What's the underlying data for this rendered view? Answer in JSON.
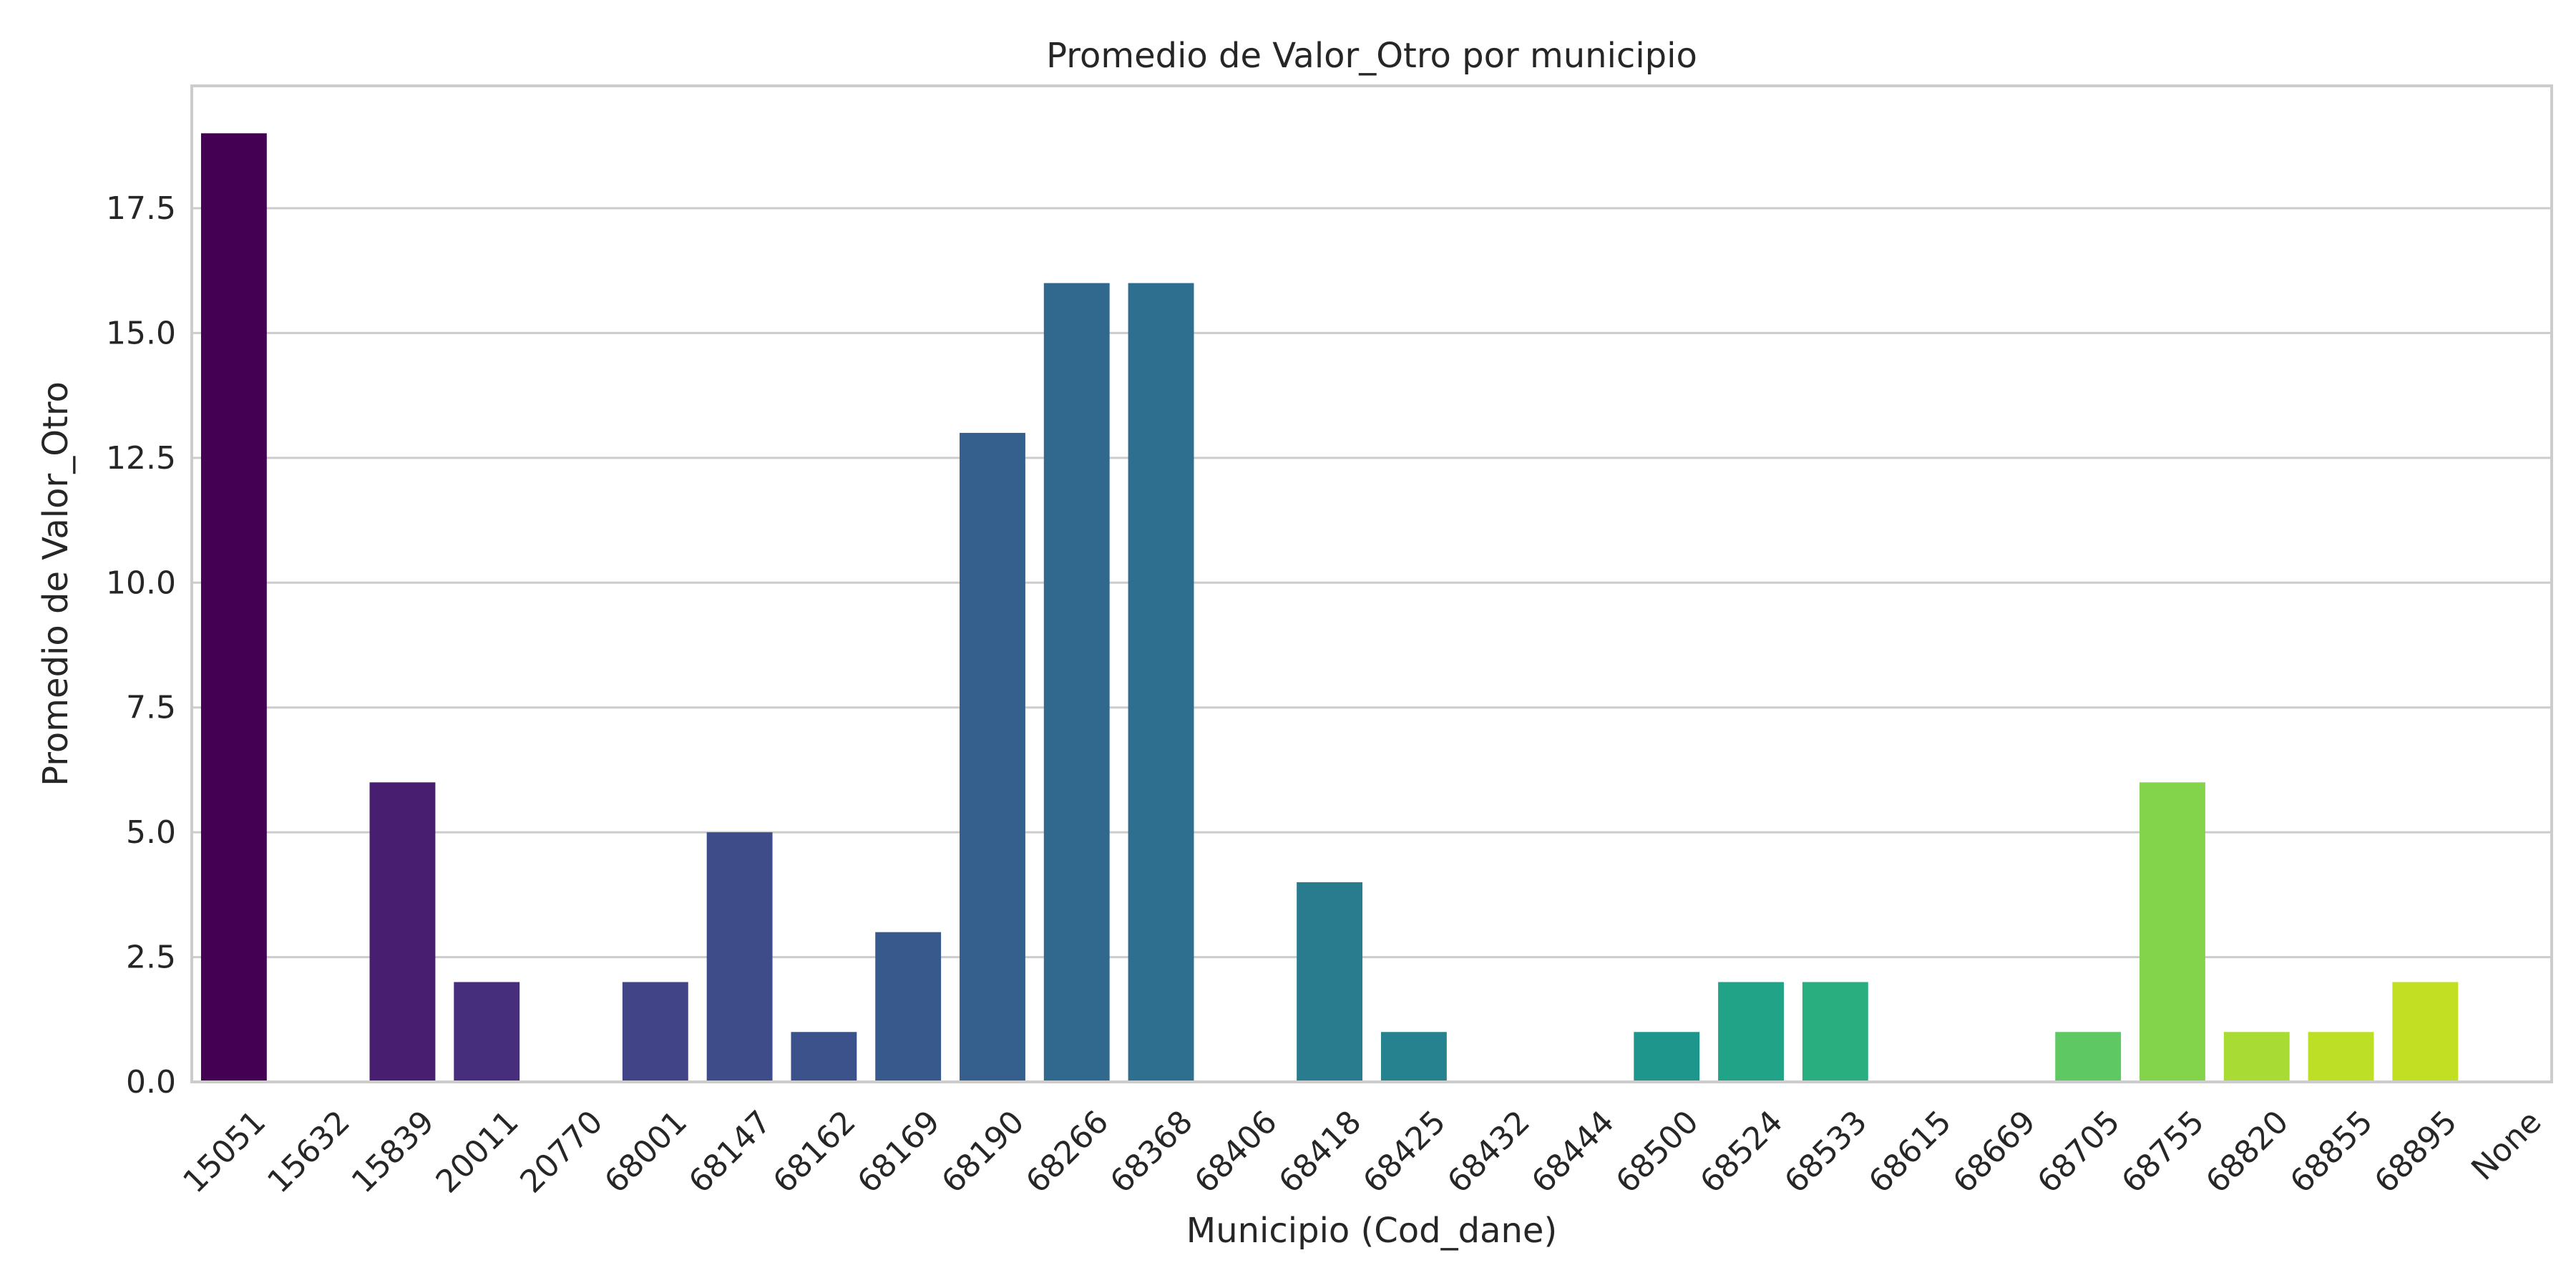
{
  "chart_data": {
    "type": "bar",
    "title": "Promedio de Valor_Otro por municipio",
    "xlabel": "Municipio (Cod_dane)",
    "ylabel": "Promedio de Valor_Otro",
    "categories": [
      "15051",
      "15632",
      "15839",
      "20011",
      "20770",
      "68001",
      "68147",
      "68162",
      "68169",
      "68190",
      "68266",
      "68368",
      "68406",
      "68418",
      "68425",
      "68432",
      "68444",
      "68500",
      "68524",
      "68533",
      "68615",
      "68669",
      "68705",
      "68755",
      "68820",
      "68855",
      "68895",
      "None"
    ],
    "values": [
      19,
      0,
      6,
      2,
      0,
      2,
      5,
      1,
      3,
      13,
      16,
      16,
      0,
      4,
      1,
      0,
      0,
      1,
      2,
      2,
      0,
      0,
      1,
      6,
      1,
      1,
      2,
      0
    ],
    "colors": [
      "#440154",
      "#471164",
      "#481f70",
      "#472e7c",
      "#453882",
      "#414487",
      "#3e4c8a",
      "#3b528b",
      "#38598c",
      "#355f8d",
      "#31688e",
      "#2e6e8e",
      "#2c728e",
      "#287c8e",
      "#26828e",
      "#23888e",
      "#21918c",
      "#1f968b",
      "#20a386",
      "#29af7f",
      "#35b779",
      "#40bd72",
      "#5ec962",
      "#84d44b",
      "#a8db34",
      "#bddf26",
      "#c2df23",
      "#d0e11c"
    ],
    "ylim": [
      0,
      19.95
    ],
    "yticks": [
      0.0,
      2.5,
      5.0,
      7.5,
      10.0,
      12.5,
      15.0,
      17.5
    ],
    "ytick_labels": [
      "0.0",
      "2.5",
      "5.0",
      "7.5",
      "10.0",
      "12.5",
      "15.0",
      "17.5"
    ],
    "grid": "horizontal",
    "legend": "none"
  }
}
